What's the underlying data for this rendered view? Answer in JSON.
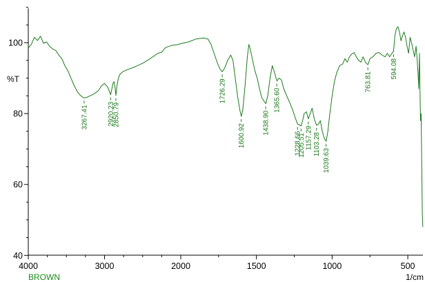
{
  "chart_data": {
    "type": "line",
    "title": "",
    "xlabel": "",
    "x_unit": "1/cm",
    "ylabel": "%T",
    "sample_name": "BROWN",
    "xlim": [
      4000,
      400
    ],
    "ylim": [
      40,
      110
    ],
    "x_ticks": [
      4000,
      3000,
      2000,
      1500,
      1000,
      500
    ],
    "y_ticks": [
      40,
      60,
      80,
      100
    ],
    "line_color": "#1a7a1a",
    "grid": false,
    "legend": "none",
    "series": [
      {
        "values": [
          [
            4000,
            98.5
          ],
          [
            3960,
            99.5
          ],
          [
            3920,
            101.5
          ],
          [
            3880,
            100.6
          ],
          [
            3840,
            101.8
          ],
          [
            3800,
            99.8
          ],
          [
            3760,
            100.2
          ],
          [
            3720,
            99.0
          ],
          [
            3680,
            98.2
          ],
          [
            3640,
            97.8
          ],
          [
            3600,
            96.5
          ],
          [
            3560,
            95.5
          ],
          [
            3520,
            93.5
          ],
          [
            3480,
            92.0
          ],
          [
            3440,
            90.0
          ],
          [
            3400,
            88.0
          ],
          [
            3360,
            86.3
          ],
          [
            3320,
            85.2
          ],
          [
            3280,
            84.5
          ],
          [
            3267,
            84.4
          ],
          [
            3230,
            84.6
          ],
          [
            3200,
            84.9
          ],
          [
            3160,
            85.3
          ],
          [
            3120,
            85.8
          ],
          [
            3080,
            86.5
          ],
          [
            3040,
            87.8
          ],
          [
            3000,
            88.5
          ],
          [
            2960,
            87.5
          ],
          [
            2940,
            86.5
          ],
          [
            2920,
            85.3
          ],
          [
            2905,
            86.8
          ],
          [
            2890,
            88.5
          ],
          [
            2875,
            89.0
          ],
          [
            2860,
            87.0
          ],
          [
            2850,
            85.1
          ],
          [
            2840,
            87.5
          ],
          [
            2820,
            89.8
          ],
          [
            2800,
            91.0
          ],
          [
            2760,
            91.8
          ],
          [
            2700,
            92.4
          ],
          [
            2600,
            93.2
          ],
          [
            2500,
            94.2
          ],
          [
            2400,
            95.5
          ],
          [
            2300,
            97.0
          ],
          [
            2250,
            97.3
          ],
          [
            2200,
            98.6
          ],
          [
            2150,
            99.0
          ],
          [
            2100,
            99.3
          ],
          [
            2050,
            99.4
          ],
          [
            2000,
            99.7
          ],
          [
            1950,
            100.2
          ],
          [
            1900,
            101.0
          ],
          [
            1850,
            101.3
          ],
          [
            1820,
            101.0
          ],
          [
            1800,
            99.5
          ],
          [
            1780,
            97.0
          ],
          [
            1760,
            94.5
          ],
          [
            1740,
            92.5
          ],
          [
            1726,
            91.8
          ],
          [
            1710,
            92.8
          ],
          [
            1690,
            95.0
          ],
          [
            1670,
            96.5
          ],
          [
            1655,
            95.0
          ],
          [
            1640,
            90.0
          ],
          [
            1625,
            85.0
          ],
          [
            1610,
            81.0
          ],
          [
            1600,
            79.2
          ],
          [
            1590,
            81.0
          ],
          [
            1575,
            88.0
          ],
          [
            1560,
            96.0
          ],
          [
            1550,
            99.5
          ],
          [
            1540,
            98.0
          ],
          [
            1525,
            95.0
          ],
          [
            1510,
            92.0
          ],
          [
            1495,
            90.0
          ],
          [
            1480,
            87.0
          ],
          [
            1465,
            84.5
          ],
          [
            1450,
            83.5
          ],
          [
            1438,
            82.8
          ],
          [
            1425,
            85.0
          ],
          [
            1410,
            90.0
          ],
          [
            1395,
            93.5
          ],
          [
            1380,
            91.5
          ],
          [
            1365,
            89.2
          ],
          [
            1350,
            90.0
          ],
          [
            1335,
            89.5
          ],
          [
            1320,
            87.0
          ],
          [
            1300,
            85.0
          ],
          [
            1280,
            83.0
          ],
          [
            1260,
            81.0
          ],
          [
            1245,
            79.0
          ],
          [
            1228,
            77.0
          ],
          [
            1215,
            76.8
          ],
          [
            1205,
            76.5
          ],
          [
            1195,
            78.0
          ],
          [
            1185,
            80.0
          ],
          [
            1170,
            80.5
          ],
          [
            1157,
            78.5
          ],
          [
            1145,
            80.0
          ],
          [
            1132,
            81.5
          ],
          [
            1118,
            78.5
          ],
          [
            1103,
            76.7
          ],
          [
            1090,
            77.0
          ],
          [
            1078,
            78.0
          ],
          [
            1065,
            75.0
          ],
          [
            1052,
            73.0
          ],
          [
            1039,
            72.2
          ],
          [
            1028,
            75.0
          ],
          [
            1015,
            80.0
          ],
          [
            1000,
            85.0
          ],
          [
            985,
            89.0
          ],
          [
            970,
            91.5
          ],
          [
            950,
            93.5
          ],
          [
            930,
            94.0
          ],
          [
            915,
            95.5
          ],
          [
            900,
            94.5
          ],
          [
            885,
            96.0
          ],
          [
            870,
            96.8
          ],
          [
            855,
            97.2
          ],
          [
            840,
            96.0
          ],
          [
            825,
            95.0
          ],
          [
            810,
            94.5
          ],
          [
            795,
            96.0
          ],
          [
            780,
            94.5
          ],
          [
            770,
            94.0
          ],
          [
            763,
            93.8
          ],
          [
            750,
            95.5
          ],
          [
            730,
            96.0
          ],
          [
            710,
            97.0
          ],
          [
            690,
            97.2
          ],
          [
            670,
            96.5
          ],
          [
            650,
            96.0
          ],
          [
            635,
            97.0
          ],
          [
            620,
            96.0
          ],
          [
            605,
            97.0
          ],
          [
            594,
            97.5
          ],
          [
            585,
            102.0
          ],
          [
            575,
            104.0
          ],
          [
            565,
            104.5
          ],
          [
            555,
            103.0
          ],
          [
            545,
            100.5
          ],
          [
            535,
            102.0
          ],
          [
            525,
            103.0
          ],
          [
            515,
            101.5
          ],
          [
            505,
            99.0
          ],
          [
            495,
            97.0
          ],
          [
            485,
            101.5
          ],
          [
            475,
            100.0
          ],
          [
            465,
            98.0
          ],
          [
            455,
            96.0
          ],
          [
            445,
            99.0
          ],
          [
            438,
            95.0
          ],
          [
            432,
            91.0
          ],
          [
            428,
            87.0
          ],
          [
            423,
            97.0
          ],
          [
            420,
            88.0
          ],
          [
            416,
            78.0
          ],
          [
            412,
            80.0
          ],
          [
            408,
            67.0
          ],
          [
            404,
            52.0
          ],
          [
            401,
            48.0
          ]
        ]
      }
    ],
    "peak_labels": [
      {
        "x": 3267.41,
        "y": 84.4,
        "text": "3267.41"
      },
      {
        "x": 2920.23,
        "y": 85.3,
        "text": "2920.23"
      },
      {
        "x": 2850.79,
        "y": 85.1,
        "text": "2850.79"
      },
      {
        "x": 1726.29,
        "y": 91.8,
        "text": "1726.29"
      },
      {
        "x": 1600.92,
        "y": 79.2,
        "text": "1600.92"
      },
      {
        "x": 1438.9,
        "y": 82.8,
        "text": "1438.90"
      },
      {
        "x": 1365.6,
        "y": 89.2,
        "text": "1365.60"
      },
      {
        "x": 1228.66,
        "y": 77.0,
        "text": "1228.66"
      },
      {
        "x": 1205.51,
        "y": 76.5,
        "text": "1205.51"
      },
      {
        "x": 1157.29,
        "y": 78.5,
        "text": "1157.29"
      },
      {
        "x": 1103.28,
        "y": 76.7,
        "text": "1103.28"
      },
      {
        "x": 1039.63,
        "y": 72.2,
        "text": "1039.63"
      },
      {
        "x": 763.81,
        "y": 93.8,
        "text": "763.81"
      },
      {
        "x": 594.08,
        "y": 97.5,
        "text": "594.08"
      }
    ]
  }
}
